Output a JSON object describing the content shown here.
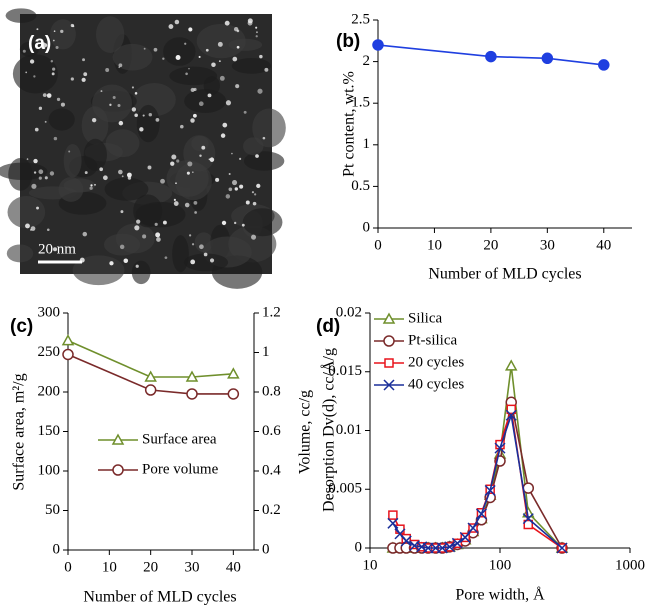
{
  "chart_data": [
    {
      "type": "image",
      "label": "(a)",
      "scale_bar": "20 nm"
    },
    {
      "type": "line",
      "label": "(b)",
      "xlabel": "Number of MLD cycles",
      "ylabel": "Pt content, wt.%",
      "x": [
        0,
        20,
        30,
        40
      ],
      "values": [
        2.2,
        2.06,
        2.04,
        1.96
      ],
      "color": "#1f3fe0",
      "xlim": [
        0,
        45
      ],
      "xticks": [
        0,
        10,
        20,
        30,
        40
      ],
      "ylim": [
        0,
        2.5
      ],
      "yticks": [
        0,
        0.5,
        1,
        1.5,
        2,
        2.5
      ]
    },
    {
      "type": "line",
      "label": "(c)",
      "xlabel": "Number of MLD cycles",
      "ylabel": "Surface area, m²/g",
      "y2label": "Volume, cc/g",
      "x": [
        0,
        20,
        30,
        40
      ],
      "series": [
        {
          "name": "Surface area",
          "color": "#6f8f2c",
          "marker": "triangle",
          "values": [
            265,
            219,
            219,
            223
          ]
        },
        {
          "name": "Pore volume",
          "color": "#7a2a2a",
          "marker": "circle",
          "axis": "y2",
          "values": [
            0.99,
            0.81,
            0.79,
            0.79
          ]
        }
      ],
      "xlim": [
        0,
        45
      ],
      "xticks": [
        0,
        10,
        20,
        30,
        40
      ],
      "ylim": [
        0,
        300
      ],
      "yticks": [
        0,
        50,
        100,
        150,
        200,
        250,
        300
      ],
      "y2lim": [
        0,
        1.2
      ],
      "y2ticks": [
        0,
        0.2,
        0.4,
        0.6,
        0.8,
        1,
        1.2
      ],
      "legend": "center-left"
    },
    {
      "type": "line",
      "label": "(d)",
      "xlabel": "Pore width, Å",
      "ylabel": "Desorption Dv(d), cc/Å/g",
      "xlog": true,
      "x": [
        15,
        17,
        19,
        22,
        25,
        28,
        32,
        36,
        41,
        47,
        54,
        62,
        72,
        84,
        100,
        122,
        165,
        300
      ],
      "series": [
        {
          "name": "Silica",
          "color": "#6f8f2c",
          "marker": "triangle",
          "values": [
            0,
            0,
            0,
            0,
            0,
            0,
            0,
            0,
            0.0001,
            0.0003,
            0.0007,
            0.0014,
            0.0025,
            0.0045,
            0.008,
            0.0155,
            0.003,
            0
          ]
        },
        {
          "name": "Pt-silica",
          "color": "#7a2a2a",
          "marker": "circle",
          "values": [
            0,
            0,
            0,
            0,
            0,
            0,
            0,
            0,
            0.0001,
            0.0003,
            0.0006,
            0.0013,
            0.0024,
            0.0043,
            0.0074,
            0.0124,
            0.0051,
            0
          ]
        },
        {
          "name": "20 cycles",
          "color": "#e8141c",
          "marker": "square",
          "values": [
            0.0028,
            0.0016,
            0.0008,
            0.0003,
            0.0001,
            0,
            0,
            0,
            0.0001,
            0.0004,
            0.0009,
            0.0017,
            0.003,
            0.005,
            0.0088,
            0.0118,
            0.002,
            0
          ]
        },
        {
          "name": "40 cycles",
          "color": "#1a2f9a",
          "marker": "x",
          "values": [
            0.0021,
            0.0012,
            0.0006,
            0.0002,
            0.0001,
            0,
            0,
            0,
            0.0001,
            0.0004,
            0.0009,
            0.0017,
            0.0029,
            0.0049,
            0.0085,
            0.0113,
            0.0025,
            0
          ]
        }
      ],
      "xlim": [
        10,
        1000
      ],
      "xticks": [
        10,
        100,
        1000
      ],
      "ylim": [
        0,
        0.02
      ],
      "yticks": [
        0,
        0.005,
        0.01,
        0.015,
        0.02
      ],
      "legend": "upper-left"
    }
  ]
}
